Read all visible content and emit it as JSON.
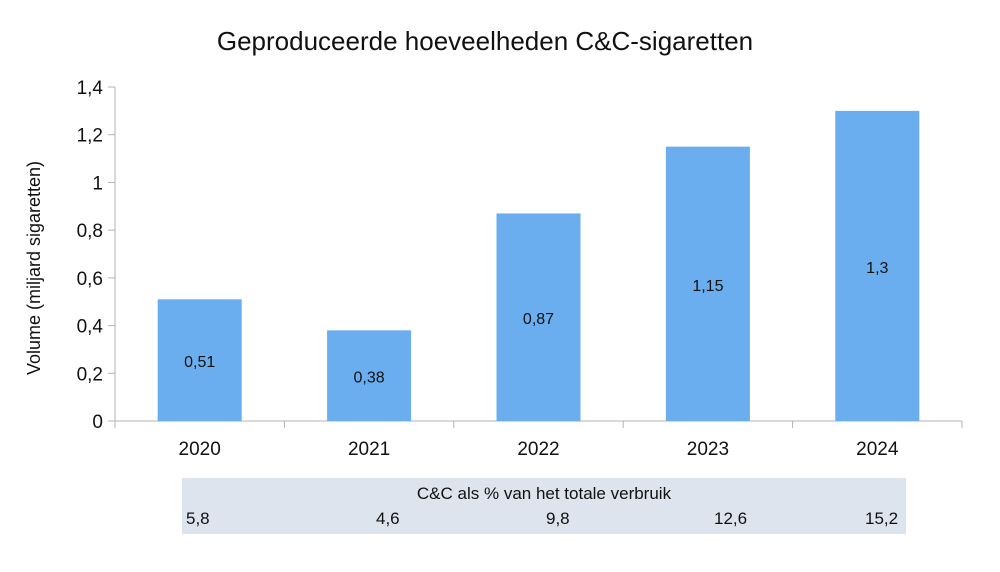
{
  "chart_data": {
    "type": "bar",
    "title": "Geproduceerde hoeveelheden C&C-sigaretten",
    "xlabel": "",
    "ylabel": "Volume (miljard sigaretten)",
    "categories": [
      "2020",
      "2021",
      "2022",
      "2023",
      "2024"
    ],
    "values": [
      0.51,
      0.38,
      0.87,
      1.15,
      1.3
    ],
    "data_labels": [
      "0,51",
      "0,38",
      "0,87",
      "1,15",
      "1,3"
    ],
    "ylim": [
      0,
      1.4
    ],
    "yticks": [
      0,
      0.2,
      0.4,
      0.6,
      0.8,
      1,
      1.2,
      1.4
    ],
    "ytick_labels": [
      "0",
      "0,2",
      "0,4",
      "0,6",
      "0,8",
      "1",
      "1,2",
      "1,4"
    ],
    "grid": false,
    "bar_color": "#6aaef0",
    "table": {
      "title": "C&C als % van het totale verbruik",
      "values": [
        "5,8",
        "4,6",
        "9,8",
        "12,6",
        "15,2"
      ],
      "background": "#dde4ee"
    }
  }
}
